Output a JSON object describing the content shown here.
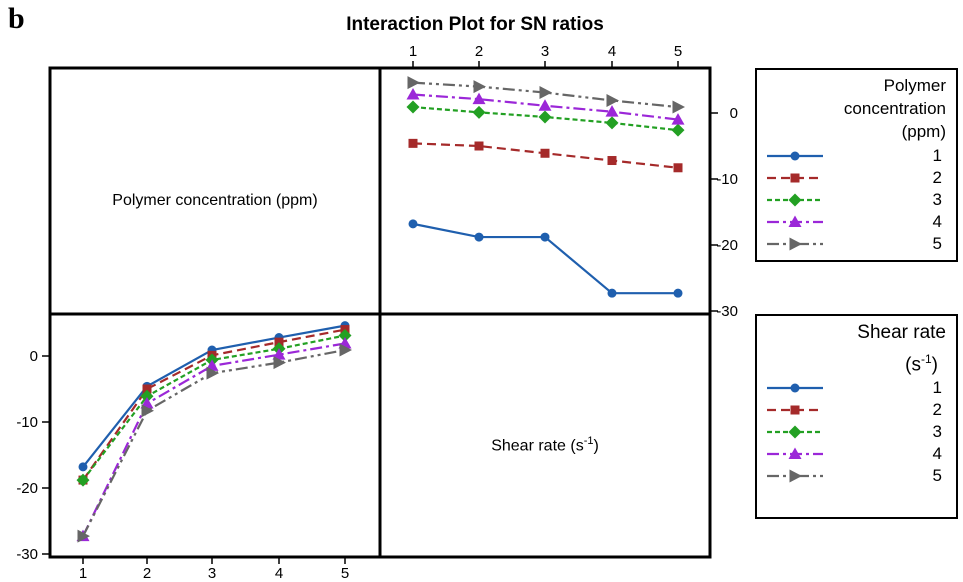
{
  "panel_letter": "b",
  "title": "Interaction Plot for SN ratios",
  "colors": {
    "s1": "#1f5fae",
    "s2": "#a52a2a",
    "s3": "#23a023",
    "s4": "#9b27d8",
    "s5": "#666666"
  },
  "diag_labels": {
    "polymer": "Polymer concentration (ppm)",
    "shear_main": "Shear rate (s",
    "shear_sup": "-1",
    "shear_close": ")"
  },
  "legend_polymer": {
    "title_lines": [
      "Polymer",
      "concentration",
      "(ppm)"
    ],
    "entries": [
      "1",
      "2",
      "3",
      "4",
      "5"
    ]
  },
  "legend_shear": {
    "title_line1": "Shear rate",
    "title_line2_main": "(s",
    "title_line2_sup": "-1",
    "title_line2_close": ")",
    "entries": [
      "1",
      "2",
      "3",
      "4",
      "5"
    ]
  },
  "chart_data": [
    {
      "type": "line",
      "panel": "top-right",
      "description_x": "Shear rate level",
      "x": [
        1,
        2,
        3,
        4,
        5
      ],
      "xticks": [
        "1",
        "2",
        "3",
        "4",
        "5"
      ],
      "ylim": [
        -30,
        5
      ],
      "yticks": [
        0,
        -10,
        -20,
        -30
      ],
      "series": [
        {
          "name": "1",
          "values": [
            -16.8,
            -18.8,
            -18.8,
            -27.3,
            -27.3
          ]
        },
        {
          "name": "2",
          "values": [
            -4.6,
            -5.0,
            -6.1,
            -7.2,
            -8.3
          ]
        },
        {
          "name": "3",
          "values": [
            0.9,
            0.1,
            -0.6,
            -1.5,
            -2.6
          ]
        },
        {
          "name": "4",
          "values": [
            2.8,
            2.1,
            1.1,
            0.2,
            -1.0
          ]
        },
        {
          "name": "5",
          "values": [
            4.6,
            4.0,
            3.1,
            1.9,
            0.9
          ]
        }
      ]
    },
    {
      "type": "line",
      "panel": "bottom-left",
      "description_x": "Polymer concentration level",
      "x": [
        1,
        2,
        3,
        4,
        5
      ],
      "xticks": [
        "1",
        "2",
        "3",
        "4",
        "5"
      ],
      "ylim": [
        -30,
        5
      ],
      "yticks": [
        0,
        -10,
        -20,
        -30
      ],
      "series": [
        {
          "name": "1",
          "values": [
            -16.8,
            -4.6,
            0.9,
            2.8,
            4.6
          ]
        },
        {
          "name": "2",
          "values": [
            -18.8,
            -5.0,
            0.1,
            2.1,
            4.0
          ]
        },
        {
          "name": "3",
          "values": [
            -18.8,
            -6.1,
            -0.6,
            1.1,
            3.1
          ]
        },
        {
          "name": "4",
          "values": [
            -27.3,
            -7.2,
            -1.5,
            0.2,
            1.9
          ]
        },
        {
          "name": "5",
          "values": [
            -27.3,
            -8.3,
            -2.6,
            -1.0,
            0.9
          ]
        }
      ]
    }
  ]
}
